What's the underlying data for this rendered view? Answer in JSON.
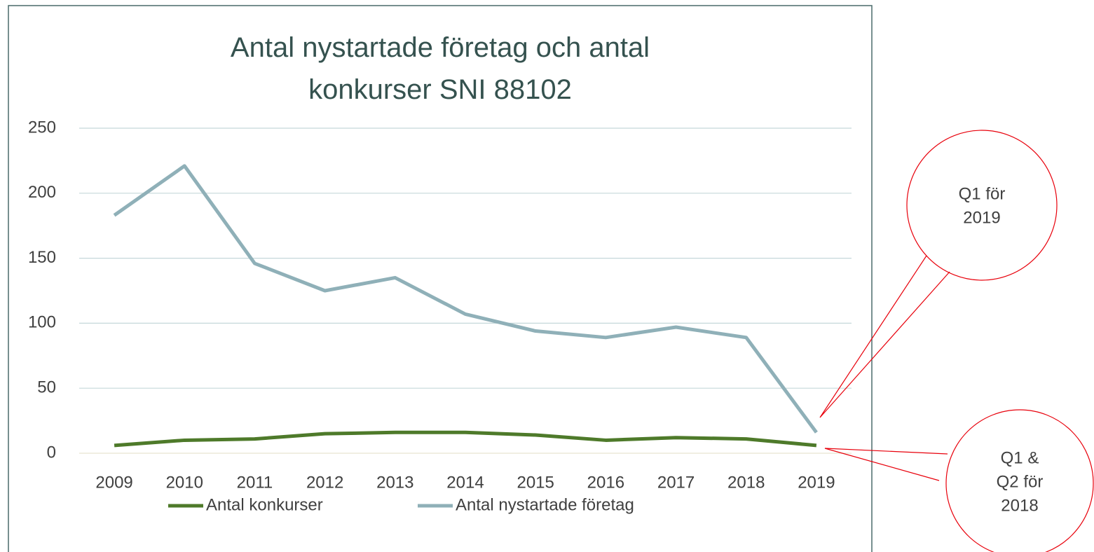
{
  "chart_data": {
    "type": "line",
    "title": "Antal nystartade företag och antal konkurser SNI 88102",
    "categories": [
      "2009",
      "2010",
      "2011",
      "2012",
      "2013",
      "2014",
      "2015",
      "2016",
      "2017",
      "2018",
      "2019"
    ],
    "series": [
      {
        "name": "Antal konkurser",
        "color": "#4e7a2a",
        "values": [
          6,
          10,
          11,
          15,
          16,
          16,
          14,
          10,
          12,
          11,
          6
        ]
      },
      {
        "name": "Antal nystartade företag",
        "color": "#8fb0b8",
        "values": [
          183,
          221,
          146,
          125,
          135,
          107,
          94,
          89,
          97,
          89,
          16
        ]
      }
    ],
    "ylim": [
      0,
      250
    ],
    "yticks": [
      0,
      50,
      100,
      150,
      200,
      250
    ],
    "grid": true,
    "legend": "bottom",
    "annotations": [
      {
        "lines": [
          "Q1 för",
          "2019"
        ],
        "color": "#e8000b"
      },
      {
        "lines": [
          "Q1 &",
          "Q2 för",
          "2018"
        ],
        "color": "#e8000b"
      }
    ]
  }
}
